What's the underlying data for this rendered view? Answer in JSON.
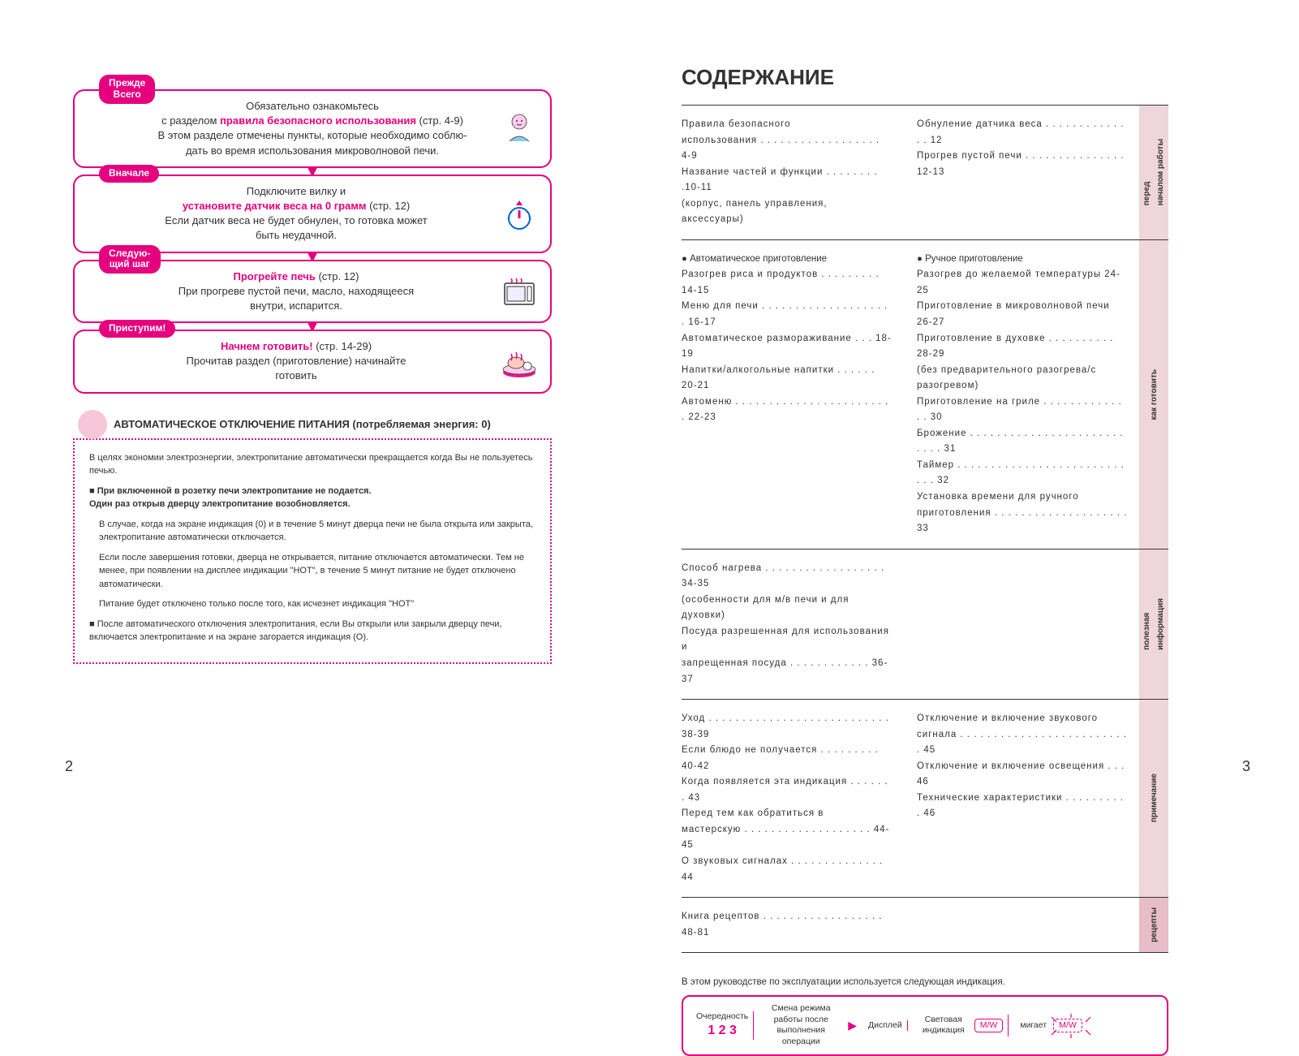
{
  "colors": {
    "accent": "#e6007e",
    "tab_bg": "#efd6dc",
    "tab_recipe": "#e8bcc9",
    "text": "#333333",
    "light_pink": "#f7c6d9"
  },
  "left": {
    "steps": [
      {
        "badge": "Прежде\nВсего",
        "line1_pre": "Обязательно ознакомьтесь",
        "line2_pre": "с разделом ",
        "line2_pink": "правила безопасного использования",
        "line2_post": " (стр. 4-9)",
        "line3": "В этом разделе отмечены пункты, которые необходимо соблю-",
        "line4": "дать во время использования микроволновой печи."
      },
      {
        "badge": "Вначале",
        "line1": "Подключите вилку и",
        "line2_pink": "установите датчик веса на 0 грамм",
        "line2_post": " (стр. 12)",
        "line3": "Если датчик веса не будет обнулен, то готовка может",
        "line4": "быть неудачной."
      },
      {
        "badge": "Следую-\nщий шаг",
        "line1_pink": "Прогрейте печь",
        "line1_post": " (стр. 12)",
        "line2": "При прогреве пустой печи, масло, находящееся",
        "line3": "внутри, испарится."
      },
      {
        "badge": "Приступим!",
        "line1_pink": "Начнем готовить!",
        "line1_post": " (стр. 14-29)",
        "line2": "Прочитав раздел (приготовление) начинайте",
        "line3": "готовить"
      }
    ],
    "auto_off": {
      "title": "АВТОМАТИЧЕСКОЕ ОТКЛЮЧЕНИЕ ПИТАНИЯ (потребляемая энергия: 0)",
      "p1": "В целях экономии электроэнергии, электропитание автоматически прекращается когда Вы не пользуетесь печью.",
      "b1_l1": "При включенной в розетку печи электропитание не подается.",
      "b1_l2": "Один раз открыв дверцу электропитание возобновляется.",
      "p2": "В случае, когда на экране индикация (0) и в течение 5 минут дверца печи не была открыта или закрыта, электропитание автоматически отключается.",
      "p3": "Если после завершения готовки, дверца не открывается, питание отключается автоматически. Тем не менее, при появлении на дисплее индикации \"HOT\", в течение 5 минут питание не будет отключено автоматически.",
      "p4": "Питание будет отключено только после того, как исчезнет индикация \"HOT\"",
      "b2": "После автоматического отключения электропитания, если Вы открыли или закрыли дверцу печи, включается электропитание и на экране загорается индикация (О)."
    },
    "page_num": "2"
  },
  "right": {
    "title": "СОДЕРЖАНИЕ",
    "sections": [
      {
        "tab": "перед\nначалом работы",
        "tab_bg": "#efd6dc",
        "col1": [
          "Правила безопасного",
          "    использования . . . . . . . . . . . . . . . . . . 4-9",
          "Название частей и функции . . . . . . . . .10-11",
          "(корпус, панель управления, аксессуары)"
        ],
        "col2": [
          "Обнуление датчика веса . . . . . . . . . . . . . . 12",
          "Прогрев пустой печи . . . . . . . . . . . . . . . 12-13"
        ]
      },
      {
        "tab": "как готовить",
        "tab_bg": "#efd6dc",
        "col1_header": "● Автоматическое приготовление",
        "col1": [
          "Разогрев риса и продуктов . . . . . . . . . 14-15",
          "Меню для печи . . . . . . . . . . . . . . . . . . . . 16-17",
          "Автоматическое размораживание . . . 18-19",
          "Напитки/алкогольные напитки . . . . . .  20-21",
          "Автоменю . . . . . . . . . . . . . . . . . . . . . . . . 22-23"
        ],
        "col2_header": "● Ручное приготовление",
        "col2": [
          "Разогрев до желаемой температуры   24-25",
          "Приготовление в микроволновой печи  26-27",
          "Приготовление в духовке . . . . . . . . . .  28-29",
          "(без предварительного разогрева/с",
          "    разогревом)",
          "Приготовление на гриле . . . . . . . . . . . . . . 30",
          "Брожение . . . . . . . . . . . . . . . . . . . . . . . . . . . 31",
          "Таймер . . . . . . . . . . . . . . . . . . . . . . . . . . . .  32",
          "Установка времени для ручного",
          "    приготовления . . . . . . . . . . . . . . . . . . . . 33"
        ]
      },
      {
        "tab": "полезная\nинформация",
        "tab_bg": "#efd6dc",
        "col1": [
          "Способ нагрева . . . . . . . . . . . . . . . . . .  34-35",
          "(особенности для м/в печи и для духовки)",
          "Посуда разрешенная для использования и",
          "    запрещенная посуда . . . . . . . . . . . .  36-37"
        ],
        "col2": []
      },
      {
        "tab": "примечание",
        "tab_bg": "#efd6dc",
        "col1": [
          "Уход . . . . . . . . . . . . . . . . . . . . . . . . . . .  38-39",
          "Если блюдо не получается . . . . . . . . .  40-42",
          "Когда появляется эта индикация . . . . . . . 43",
          "Перед тем как обратиться в",
          "    мастерскую . . . . . . . . . . . . . . . . . . .  44-45",
          "О звуковых сигналах . . . . . . . . . . . . . .  44"
        ],
        "col2": [
          "Отключение и включение звукового",
          "    сигнала . . . . . . . . . . . . . . . . . . . . . . . . . . 45",
          "Отключение и включение освещения . . . 46",
          "Технические характеристики . . . . . . . . . .  46"
        ]
      },
      {
        "tab": "рецепты",
        "tab_bg": "#e8bcc9",
        "col1": [
          "Книга рецептов . . . . . . . . . . . . . . . . . .  48-81"
        ],
        "col2": []
      }
    ],
    "note": "В этом руководстве по эксплуатации используется следующая индикация.",
    "indicator": {
      "col1_label": "Очередность",
      "col1_nums": "1 2 3",
      "col2": "Смена режима работы после выполнения операции",
      "col3": "Дисплей",
      "col4_label": "Световая индикация",
      "col4_mw": "M/W",
      "col5_label": "мигает",
      "col5_mw": "M/W"
    },
    "page_num": "3"
  }
}
